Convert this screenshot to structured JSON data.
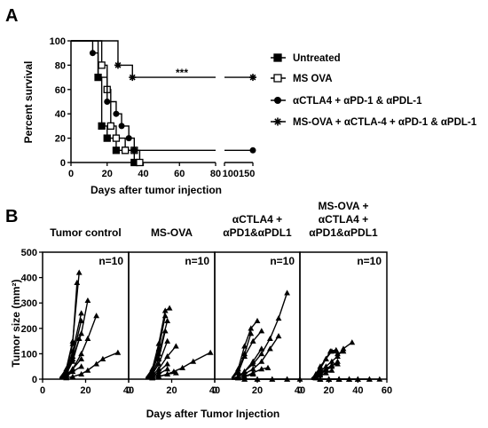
{
  "chart_data": [
    {
      "panel_label": "A",
      "type": "line",
      "step": true,
      "xlabel": "Days after tumor injection",
      "ylabel": "Percent survival",
      "ylim": [
        0,
        100
      ],
      "yticks": [
        0,
        20,
        40,
        60,
        80,
        100
      ],
      "xticks": [
        "0",
        "20",
        "40",
        "60",
        "80",
        "100",
        "150"
      ],
      "x_break_tick_label": "100150",
      "significance": "***",
      "legend_position": "right",
      "series": [
        {
          "name": "Untreated",
          "marker": "filled-square",
          "x": [
            0,
            15,
            17,
            20,
            25,
            30,
            35
          ],
          "y": [
            100,
            70,
            30,
            20,
            10,
            10,
            0
          ]
        },
        {
          "name": "MS OVA",
          "marker": "open-square",
          "x": [
            0,
            17,
            20,
            22,
            25,
            30,
            35,
            38
          ],
          "y": [
            100,
            80,
            60,
            30,
            20,
            10,
            10,
            0
          ]
        },
        {
          "name": "αCTLA4 + αPD-1 & αPDL-1",
          "marker": "filled-circle",
          "x": [
            0,
            12,
            15,
            20,
            25,
            28,
            32,
            35,
            150
          ],
          "y": [
            100,
            90,
            70,
            50,
            40,
            30,
            20,
            10,
            10
          ]
        },
        {
          "name": "MS-OVA + αCTLA-4 + αPD-1 & αPDL-1",
          "marker": "star",
          "x": [
            0,
            26,
            34,
            150
          ],
          "y": [
            100,
            80,
            70,
            70
          ]
        }
      ]
    },
    {
      "panel_label": "B",
      "type": "line",
      "shared_xlabel": "Days after Tumor Injection",
      "ylabel": "Tumor size (mm²)",
      "ylim": [
        0,
        500
      ],
      "yticks": [
        0,
        100,
        200,
        300,
        400,
        500
      ],
      "marker": "filled-triangle",
      "panels": [
        {
          "title": "Tumor control",
          "annotation": "n=10",
          "xlim": [
            0,
            40
          ],
          "xticks": [
            0,
            20,
            40
          ],
          "lines": [
            {
              "x": [
                8,
                11,
                14,
                17
              ],
              "y": [
                5,
                40,
                150,
                420
              ]
            },
            {
              "x": [
                8,
                11,
                14,
                16
              ],
              "y": [
                5,
                35,
                140,
                380
              ]
            },
            {
              "x": [
                8,
                11,
                14,
                18,
                21
              ],
              "y": [
                3,
                20,
                80,
                180,
                310
              ]
            },
            {
              "x": [
                8,
                11,
                14,
                18
              ],
              "y": [
                3,
                30,
                110,
                260
              ]
            },
            {
              "x": [
                8,
                11,
                14,
                18
              ],
              "y": [
                2,
                25,
                90,
                230
              ]
            },
            {
              "x": [
                8,
                11,
                14,
                17
              ],
              "y": [
                2,
                20,
                70,
                160
              ]
            },
            {
              "x": [
                8,
                11,
                14,
                18,
                21,
                25
              ],
              "y": [
                2,
                10,
                40,
                100,
                160,
                250
              ]
            },
            {
              "x": [
                8,
                11,
                14,
                18
              ],
              "y": [
                2,
                15,
                40,
                80
              ]
            },
            {
              "x": [
                8,
                11,
                14,
                18
              ],
              "y": [
                2,
                10,
                30,
                50
              ]
            },
            {
              "x": [
                8,
                11,
                14,
                18,
                21,
                25,
                28,
                35
              ],
              "y": [
                0,
                5,
                10,
                20,
                35,
                60,
                80,
                105
              ]
            }
          ]
        },
        {
          "title": "MS-OVA",
          "annotation": "n=10",
          "xlim": [
            0,
            40
          ],
          "xticks": [
            0,
            20,
            40
          ],
          "lines": [
            {
              "x": [
                8,
                11,
                14,
                17,
                19
              ],
              "y": [
                5,
                40,
                140,
                270,
                280
              ]
            },
            {
              "x": [
                8,
                11,
                14,
                17
              ],
              "y": [
                5,
                30,
                120,
                250
              ]
            },
            {
              "x": [
                8,
                11,
                14,
                18
              ],
              "y": [
                3,
                30,
                100,
                230
              ]
            },
            {
              "x": [
                8,
                11,
                14,
                17
              ],
              "y": [
                3,
                20,
                80,
                190
              ]
            },
            {
              "x": [
                8,
                11,
                14,
                18
              ],
              "y": [
                2,
                20,
                60,
                150
              ]
            },
            {
              "x": [
                8,
                11,
                14,
                18,
                22
              ],
              "y": [
                2,
                15,
                40,
                90,
                130
              ]
            },
            {
              "x": [
                8,
                11,
                14,
                18
              ],
              "y": [
                2,
                10,
                30,
                60
              ]
            },
            {
              "x": [
                8,
                11,
                14,
                18
              ],
              "y": [
                2,
                10,
                20,
                40
              ]
            },
            {
              "x": [
                8,
                11,
                14,
                18,
                21,
                25,
                30,
                38
              ],
              "y": [
                0,
                5,
                10,
                20,
                30,
                45,
                70,
                105
              ]
            },
            {
              "x": [
                8,
                11,
                14,
                18,
                22
              ],
              "y": [
                0,
                5,
                10,
                20,
                25
              ]
            }
          ]
        },
        {
          "title": "αCTLA4 +\nαPD1&αPDL1",
          "annotation": "n=10",
          "xlim": [
            0,
            40
          ],
          "xticks": [
            0,
            20,
            40
          ],
          "lines": [
            {
              "x": [
                8,
                11,
                14,
                17,
                20
              ],
              "y": [
                5,
                40,
                130,
                200,
                230
              ]
            },
            {
              "x": [
                8,
                11,
                14,
                17
              ],
              "y": [
                3,
                30,
                100,
                180
              ]
            },
            {
              "x": [
                8,
                11,
                14,
                18,
                22
              ],
              "y": [
                3,
                25,
                90,
                150,
                190
              ]
            },
            {
              "x": [
                8,
                11,
                14,
                18,
                22,
                26,
                30,
                34
              ],
              "y": [
                2,
                10,
                30,
                60,
                100,
                160,
                240,
                340
              ]
            },
            {
              "x": [
                8,
                11,
                14,
                18,
                22,
                26,
                30
              ],
              "y": [
                2,
                10,
                20,
                40,
                70,
                120,
                170
              ]
            },
            {
              "x": [
                8,
                11,
                14,
                18,
                22
              ],
              "y": [
                2,
                10,
                30,
                70,
                120
              ]
            },
            {
              "x": [
                8,
                11,
                14,
                18,
                22,
                25
              ],
              "y": [
                0,
                5,
                10,
                25,
                40,
                45
              ]
            },
            {
              "x": [
                8,
                11,
                14,
                18
              ],
              "y": [
                0,
                5,
                10,
                20
              ]
            },
            {
              "x": [
                8,
                14,
                20,
                27,
                34,
                40
              ],
              "y": [
                0,
                0,
                0,
                0,
                0,
                0
              ]
            },
            {
              "x": [
                8,
                14,
                20,
                27,
                34
              ],
              "y": [
                0,
                0,
                0,
                0,
                0
              ]
            }
          ]
        },
        {
          "title": "MS-OVA +\nαCTLA4 +\nαPD1&αPDL1",
          "annotation": "n=10",
          "xlim": [
            0,
            60
          ],
          "xticks": [
            0,
            20,
            40,
            60
          ],
          "lines": [
            {
              "x": [
                8,
                11,
                14,
                18,
                21,
                25
              ],
              "y": [
                3,
                20,
                50,
                80,
                110,
                115
              ]
            },
            {
              "x": [
                8,
                11,
                14,
                18,
                22,
                26,
                30
              ],
              "y": [
                2,
                15,
                40,
                80,
                110,
                100,
                110
              ]
            },
            {
              "x": [
                8,
                11,
                14,
                18,
                22,
                26,
                30,
                36
              ],
              "y": [
                2,
                10,
                30,
                50,
                70,
                90,
                120,
                145
              ]
            },
            {
              "x": [
                8,
                11,
                14,
                18,
                22,
                26
              ],
              "y": [
                2,
                10,
                25,
                40,
                55,
                60
              ]
            },
            {
              "x": [
                8,
                11,
                14,
                18,
                22,
                26
              ],
              "y": [
                0,
                5,
                20,
                35,
                50,
                70
              ]
            },
            {
              "x": [
                8,
                11,
                14,
                18,
                22
              ],
              "y": [
                0,
                5,
                15,
                25,
                35
              ]
            },
            {
              "x": [
                8,
                14,
                20,
                27,
                34,
                40,
                48,
                55
              ],
              "y": [
                0,
                0,
                0,
                0,
                0,
                0,
                0,
                0
              ]
            },
            {
              "x": [
                8,
                14,
                20,
                27,
                34,
                40,
                48
              ],
              "y": [
                0,
                0,
                0,
                0,
                0,
                0,
                0
              ]
            },
            {
              "x": [
                8,
                14,
                20,
                27,
                34,
                40
              ],
              "y": [
                0,
                0,
                0,
                0,
                0,
                0
              ]
            },
            {
              "x": [
                8,
                14,
                20,
                27
              ],
              "y": [
                0,
                0,
                0,
                0
              ]
            }
          ]
        }
      ]
    }
  ]
}
